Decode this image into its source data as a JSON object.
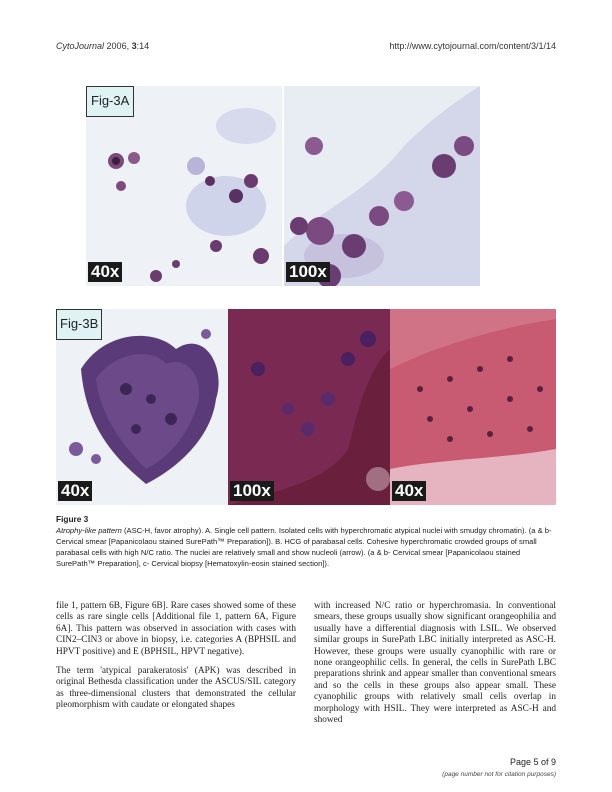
{
  "header": {
    "journal": "CytoJournal",
    "year": "2006,",
    "volume_issue": "3",
    "article": ":14",
    "url": "http://www.cytojournal.com/content/3/1/14"
  },
  "figure": {
    "fig3a_label": "Fig-3A",
    "fig3b_label": "Fig-3B",
    "mag_a1": "40x",
    "mag_a2": "100x",
    "mag_b1": "40x",
    "mag_b2": "100x",
    "mag_b3": "40x",
    "colors": {
      "pap_bg": "#e9eef4",
      "cyan_stain": "#8b5f9c",
      "he_pink": "#c9667c"
    },
    "caption_title": "Figure 3",
    "caption_lead": "Atrophy-like pattern",
    "caption_text": " (ASC-H, favor atrophy). A. Single cell pattern. Isolated cells with hyperchromatic atypical nuclei with smudgy chromatin). (a & b- Cervical smear [Papanicolaou stained SurePath™ Preparation]). B. HCG of parabasal cells. Cohesive hyperchromatic crowded groups of small parabasal cells with high N/C ratio. The nuclei are relatively small and show nucleoli (arrow). (a & b- Cervical smear [Papanicolaou stained SurePath™ Preparation], c- Cervical biopsy [Hematoxylin-eosin stained section])."
  },
  "body": {
    "left_p1": "file 1, pattern 6B, Figure 6B]. Rare cases showed some of these cells as rare single cells [Additional file 1, pattern 6A, Figure 6A]. This pattern was observed in association with cases with CIN2–CIN3 or above in biopsy, i.e. categories A (BPHSIL and HPVT positive) and E (BPHSIL, HPVT negative).",
    "left_p2": "The term 'atypical parakeratosis' (APK) was described in original Bethesda classification under the ASCUS/SIL category as three-dimensional clusters that demonstrated the cellular pleomorphism with caudate or elongated shapes",
    "right_p1": "with increased N/C ratio or hyperchromasia. In conventional smears, these groups usually show significant orangeophilia and usually have a differential diagnosis with LSIL. We observed similar groups in SurePath LBC initially interpreted as ASC-H. However, these groups were usually cyanophilic with rare or none orangeophilic cells. In general, the cells in SurePath LBC preparations shrink and appear smaller than conventional smears and so the cells in these groups also appear small. These cyanophilic groups with relatively small cells overlap in morphology with HSIL. They were interpreted as ASC-H and showed"
  },
  "footer": {
    "page": "Page 5 of 9",
    "note": "(page number not for citation purposes)"
  }
}
